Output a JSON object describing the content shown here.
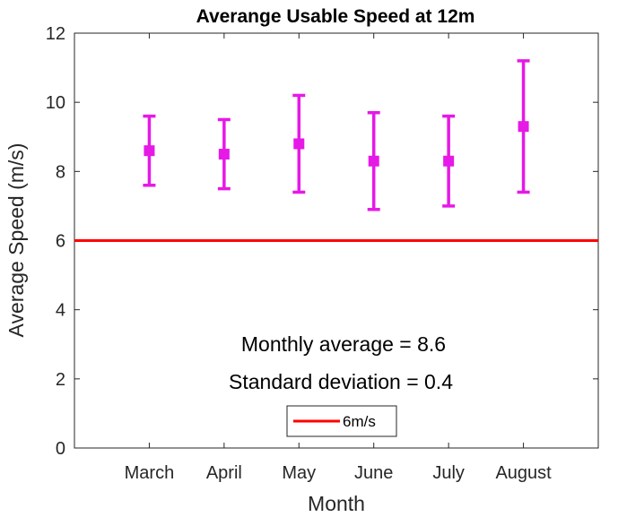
{
  "chart_data": {
    "type": "errorbar",
    "title": "Averange Usable Speed at 12m",
    "xlabel": "Month",
    "ylabel": "Average Speed (m/s)",
    "categories": [
      "March",
      "April",
      "May",
      "June",
      "July",
      "August"
    ],
    "series": [
      {
        "values": [
          8.6,
          8.5,
          8.8,
          8.3,
          8.3,
          9.3
        ],
        "lower": [
          7.6,
          7.5,
          7.4,
          6.9,
          7.0,
          7.4
        ],
        "upper": [
          9.6,
          9.5,
          10.2,
          9.7,
          9.6,
          11.2
        ],
        "color": "#e619e6"
      }
    ],
    "reference_line": {
      "name": "6m/s",
      "y": 6,
      "color": "#ff0000"
    },
    "ylim": [
      0,
      12
    ],
    "yticks": [
      0,
      2,
      4,
      6,
      8,
      10,
      12
    ],
    "grid": false,
    "legend": {
      "entries": [
        "6m/s"
      ],
      "position": "bottom-center"
    },
    "annotations": [
      "Monthly average = 8.6",
      "Standard deviation = 0.4"
    ]
  }
}
